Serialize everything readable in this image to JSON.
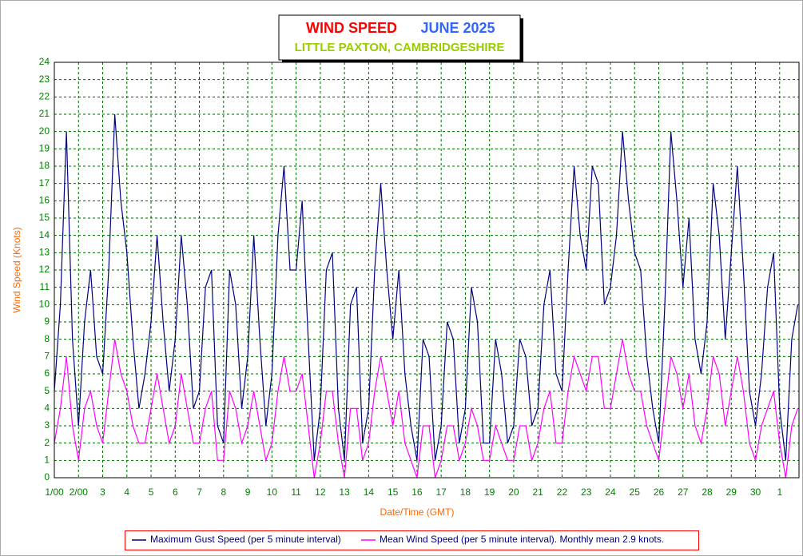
{
  "chart_data": {
    "type": "line",
    "title": "WIND SPEED",
    "title_period": "JUNE 2025",
    "subtitle": "LITTLE PAXTON, CAMBRIDGESHIRE",
    "xlabel": "Date/Time (GMT)",
    "ylabel": "Wind Speed (Knots)",
    "xlim": [
      0,
      30.8
    ],
    "ylim": [
      0,
      24
    ],
    "xticks": [
      {
        "value": 0,
        "label": "1/00"
      },
      {
        "value": 1,
        "label": "2/00"
      },
      {
        "value": 2,
        "label": "3"
      },
      {
        "value": 3,
        "label": "4"
      },
      {
        "value": 4,
        "label": "5"
      },
      {
        "value": 5,
        "label": "6"
      },
      {
        "value": 6,
        "label": "7"
      },
      {
        "value": 7,
        "label": "8"
      },
      {
        "value": 8,
        "label": "9"
      },
      {
        "value": 9,
        "label": "10"
      },
      {
        "value": 10,
        "label": "11"
      },
      {
        "value": 11,
        "label": "12"
      },
      {
        "value": 12,
        "label": "13"
      },
      {
        "value": 13,
        "label": "14"
      },
      {
        "value": 14,
        "label": "15"
      },
      {
        "value": 15,
        "label": "16"
      },
      {
        "value": 16,
        "label": "17"
      },
      {
        "value": 17,
        "label": "18"
      },
      {
        "value": 18,
        "label": "19"
      },
      {
        "value": 19,
        "label": "20"
      },
      {
        "value": 20,
        "label": "21"
      },
      {
        "value": 21,
        "label": "22"
      },
      {
        "value": 22,
        "label": "23"
      },
      {
        "value": 23,
        "label": "24"
      },
      {
        "value": 24,
        "label": "25"
      },
      {
        "value": 25,
        "label": "26"
      },
      {
        "value": 26,
        "label": "27"
      },
      {
        "value": 27,
        "label": "28"
      },
      {
        "value": 28,
        "label": "29"
      },
      {
        "value": 29,
        "label": "30"
      },
      {
        "value": 30,
        "label": "1"
      }
    ],
    "yticks": [
      0,
      1,
      2,
      3,
      4,
      5,
      6,
      7,
      8,
      9,
      10,
      11,
      12,
      13,
      14,
      15,
      16,
      17,
      18,
      19,
      20,
      21,
      22,
      23,
      24
    ],
    "grid": true,
    "x": [
      0,
      0.25,
      0.5,
      0.75,
      1,
      1.25,
      1.5,
      1.75,
      2,
      2.25,
      2.5,
      2.75,
      3,
      3.25,
      3.5,
      3.75,
      4,
      4.25,
      4.5,
      4.75,
      5,
      5.25,
      5.5,
      5.75,
      6,
      6.25,
      6.5,
      6.75,
      7,
      7.25,
      7.5,
      7.75,
      8,
      8.25,
      8.5,
      8.75,
      9,
      9.25,
      9.5,
      9.75,
      10,
      10.25,
      10.5,
      10.75,
      11,
      11.25,
      11.5,
      11.75,
      12,
      12.25,
      12.5,
      12.75,
      13,
      13.25,
      13.5,
      13.75,
      14,
      14.25,
      14.5,
      14.75,
      15,
      15.25,
      15.5,
      15.75,
      16,
      16.25,
      16.5,
      16.75,
      17,
      17.25,
      17.5,
      17.75,
      18,
      18.25,
      18.5,
      18.75,
      19,
      19.25,
      19.5,
      19.75,
      20,
      20.25,
      20.5,
      20.75,
      21,
      21.25,
      21.5,
      21.75,
      22,
      22.25,
      22.5,
      22.75,
      23,
      23.25,
      23.5,
      23.75,
      24,
      24.25,
      24.5,
      24.75,
      25,
      25.25,
      25.5,
      25.75,
      26,
      26.25,
      26.5,
      26.75,
      27,
      27.25,
      27.5,
      27.75,
      28,
      28.25,
      28.5,
      28.75,
      29,
      29.25,
      29.5,
      29.75,
      30,
      30.25,
      30.5,
      30.75
    ],
    "series": [
      {
        "name": "Maximum Gust Speed (per 5 minute interval)",
        "color": "#000080",
        "values": [
          5,
          10,
          20,
          8,
          3,
          9,
          12,
          7,
          6,
          12,
          21,
          16,
          13,
          8,
          4,
          6,
          9,
          14,
          9,
          5,
          8,
          14,
          10,
          4,
          5,
          11,
          12,
          3,
          2,
          12,
          10,
          4,
          7,
          14,
          8,
          3,
          6,
          14,
          18,
          12,
          12,
          16,
          8,
          1,
          4,
          12,
          13,
          4,
          1,
          10,
          11,
          2,
          4,
          12,
          17,
          12,
          8,
          12,
          6,
          3,
          1,
          8,
          7,
          1,
          3,
          9,
          8,
          2,
          4,
          11,
          9,
          2,
          2,
          8,
          6,
          2,
          3,
          8,
          7,
          3,
          4,
          10,
          12,
          6,
          5,
          12,
          18,
          14,
          12,
          18,
          17,
          10,
          11,
          14,
          20,
          16,
          13,
          12,
          7,
          4,
          2,
          10,
          20,
          16,
          11,
          15,
          8,
          6,
          9,
          17,
          14,
          8,
          13,
          18,
          12,
          5,
          3,
          6,
          11,
          13,
          4,
          1,
          8,
          10
        ]
      },
      {
        "name": "Mean Wind Speed (per 5 minute interval). Monthly mean 2.9 knots.",
        "color": "#ff00ff",
        "values": [
          2,
          4,
          7,
          3,
          1,
          4,
          5,
          3,
          2,
          5,
          8,
          6,
          5,
          3,
          2,
          2,
          4,
          6,
          4,
          2,
          3,
          6,
          4,
          2,
          2,
          4,
          5,
          1,
          1,
          5,
          4,
          2,
          3,
          5,
          3,
          1,
          2,
          5,
          7,
          5,
          5,
          6,
          3,
          0,
          2,
          5,
          5,
          2,
          0,
          4,
          4,
          1,
          2,
          5,
          7,
          5,
          3,
          5,
          2,
          1,
          0,
          3,
          3,
          0,
          1,
          3,
          3,
          1,
          2,
          4,
          3,
          1,
          1,
          3,
          2,
          1,
          1,
          3,
          3,
          1,
          2,
          4,
          5,
          2,
          2,
          5,
          7,
          6,
          5,
          7,
          7,
          4,
          4,
          6,
          8,
          6,
          5,
          5,
          3,
          2,
          1,
          4,
          7,
          6,
          4,
          6,
          3,
          2,
          4,
          7,
          6,
          3,
          5,
          7,
          5,
          2,
          1,
          3,
          4,
          5,
          2,
          0,
          3,
          4
        ]
      }
    ]
  }
}
